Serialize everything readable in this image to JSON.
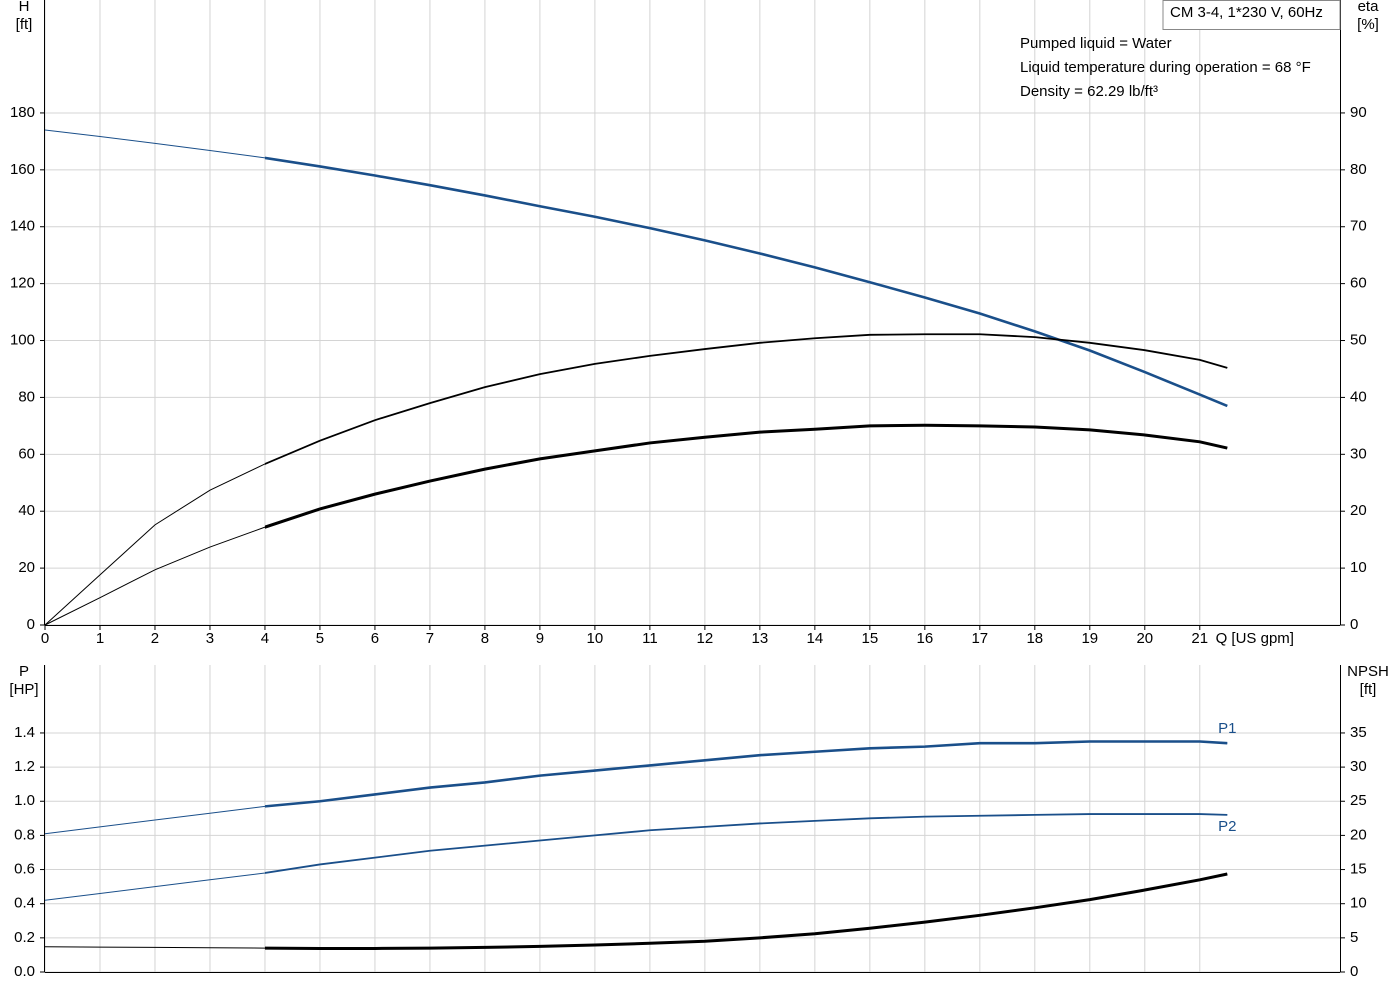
{
  "chart_data": [
    {
      "type": "line",
      "title": "CM 3-4, 1*230 V, 60Hz",
      "annotations": [
        "Pumped liquid = Water",
        "Liquid temperature during operation = 68 °F",
        "Density = 62.29 lb/ft³"
      ],
      "ylabel": "H",
      "yunit": "[ft]",
      "y2label": "eta",
      "y2unit": "[%]",
      "xlabel": "Q [US gpm]",
      "x": [
        0,
        1,
        2,
        3,
        4,
        5,
        6,
        7,
        8,
        9,
        10,
        11,
        12,
        13,
        14,
        15,
        16,
        17,
        18,
        19,
        20,
        21,
        21.5
      ],
      "xlim": [
        0,
        23.55
      ],
      "xticks": [
        0,
        1,
        2,
        3,
        4,
        5,
        6,
        7,
        8,
        9,
        10,
        11,
        12,
        13,
        14,
        15,
        16,
        17,
        18,
        19,
        20,
        21
      ],
      "ylim": [
        0,
        219.7
      ],
      "yticks": [
        0,
        20,
        40,
        60,
        80,
        100,
        120,
        140,
        160,
        180
      ],
      "y2lim": [
        0,
        109.85
      ],
      "y2ticks": [
        0,
        10,
        20,
        30,
        40,
        50,
        60,
        70,
        80,
        90
      ],
      "grid": true,
      "thick_from": 4,
      "series": [
        {
          "color": "#1a4f8a",
          "axis": "y",
          "line_width": 2.6,
          "values": [
            174,
            171.7,
            169.3,
            166.8,
            164.2,
            161.2,
            158,
            154.6,
            151,
            147.2,
            143.5,
            139.5,
            135.2,
            130.6,
            125.7,
            120.5,
            115.1,
            109.5,
            103.2,
            96.5,
            88.9,
            81,
            77
          ]
        },
        {
          "color": "#000000",
          "axis": "y2",
          "line_width": 1.8,
          "values": [
            0,
            8.8,
            17.6,
            23.7,
            28.3,
            32.4,
            36,
            39,
            41.8,
            44.1,
            45.9,
            47.3,
            48.5,
            49.6,
            50.4,
            51,
            51.1,
            51.1,
            50.6,
            49.6,
            48.3,
            46.6,
            45.2
          ]
        },
        {
          "color": "#000000",
          "axis": "y2",
          "line_width": 3,
          "values": [
            0,
            4.8,
            9.7,
            13.7,
            17.2,
            20.4,
            23,
            25.3,
            27.4,
            29.2,
            30.6,
            32,
            33,
            33.9,
            34.4,
            35,
            35.1,
            35,
            34.8,
            34.3,
            33.4,
            32.2,
            31.1
          ]
        }
      ]
    },
    {
      "type": "line",
      "ylabel": "P",
      "yunit": "[HP]",
      "y2label": "NPSH",
      "y2unit": "[ft]",
      "x": [
        0,
        1,
        2,
        3,
        4,
        5,
        6,
        7,
        8,
        9,
        10,
        11,
        12,
        13,
        14,
        15,
        16,
        17,
        18,
        19,
        20,
        21,
        21.5
      ],
      "xlim": [
        0,
        23.55
      ],
      "ylim": [
        0,
        1.798
      ],
      "yticks": [
        {
          "value": 0,
          "label": "0.0"
        },
        0.2,
        0.4,
        0.6,
        0.8,
        {
          "value": 1,
          "label": "1.0"
        },
        1.2,
        1.4
      ],
      "y2lim": [
        0,
        44.95
      ],
      "y2ticks": [
        0,
        5,
        10,
        15,
        20,
        25,
        30,
        35
      ],
      "grid": true,
      "thick_from": 4,
      "series": [
        {
          "name": "P1",
          "color": "#1a4f8a",
          "axis": "y",
          "line_width": 2.6,
          "values": [
            0.81,
            0.85,
            0.89,
            0.93,
            0.97,
            1.0,
            1.04,
            1.08,
            1.11,
            1.15,
            1.18,
            1.21,
            1.24,
            1.27,
            1.29,
            1.31,
            1.32,
            1.34,
            1.34,
            1.35,
            1.35,
            1.35,
            1.34
          ]
        },
        {
          "name": "P2",
          "color": "#1a4f8a",
          "axis": "y",
          "line_width": 1.8,
          "values": [
            0.42,
            0.46,
            0.5,
            0.54,
            0.58,
            0.63,
            0.67,
            0.71,
            0.74,
            0.77,
            0.8,
            0.83,
            0.85,
            0.87,
            0.885,
            0.9,
            0.91,
            0.915,
            0.92,
            0.925,
            0.925,
            0.925,
            0.92
          ]
        },
        {
          "color": "#000000",
          "axis": "y2",
          "line_width": 3,
          "values": [
            3.7,
            3.65,
            3.6,
            3.55,
            3.5,
            3.45,
            3.45,
            3.5,
            3.6,
            3.75,
            3.95,
            4.2,
            4.5,
            5.0,
            5.6,
            6.4,
            7.3,
            8.3,
            9.4,
            10.6,
            12,
            13.5,
            14.35
          ]
        }
      ]
    }
  ]
}
